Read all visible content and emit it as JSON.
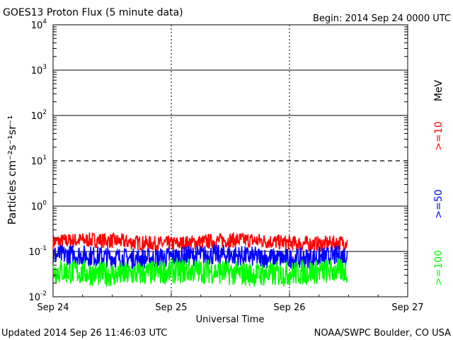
{
  "chart_data": {
    "type": "line",
    "title": "GOES13 Proton Flux (5 minute data)",
    "begin": "Begin: 2014 Sep 24 0000 UTC",
    "xlabel": "Universal Time",
    "ylabel": "Particles cm⁻²s⁻¹sr⁻¹",
    "y_scale": "log",
    "ylim": [
      0.01,
      10000
    ],
    "y_ticks": [
      {
        "value": 0.01,
        "base": "10",
        "exp": "-2"
      },
      {
        "value": 0.1,
        "base": "10",
        "exp": "-1"
      },
      {
        "value": 1,
        "base": "10",
        "exp": "0"
      },
      {
        "value": 10,
        "base": "10",
        "exp": "1"
      },
      {
        "value": 100,
        "base": "10",
        "exp": "2"
      },
      {
        "value": 1000,
        "base": "10",
        "exp": "3"
      },
      {
        "value": 10000,
        "base": "10",
        "exp": "4"
      }
    ],
    "x_ticks": [
      "Sep 24",
      "Sep 25",
      "Sep 26",
      "Sep 27"
    ],
    "xlim_days": [
      0,
      3
    ],
    "data_end_day": 2.49,
    "threshold_line": 10,
    "energy_unit": "MeV",
    "series": [
      {
        "name": ">=10",
        "color": "#ff0000",
        "typical_min": 0.11,
        "typical_max": 0.24,
        "step_days": 0.0035
      },
      {
        "name": ">=50",
        "color": "#0000ff",
        "typical_min": 0.045,
        "typical_max": 0.13,
        "step_days": 0.0035
      },
      {
        "name": ">=100",
        "color": "#00ff00",
        "typical_min": 0.018,
        "typical_max": 0.065,
        "step_days": 0.0035
      }
    ]
  },
  "footer": {
    "updated": "Updated 2014 Sep 26 11:46:03 UTC",
    "source": "NOAA/SWPC Boulder, CO USA"
  }
}
